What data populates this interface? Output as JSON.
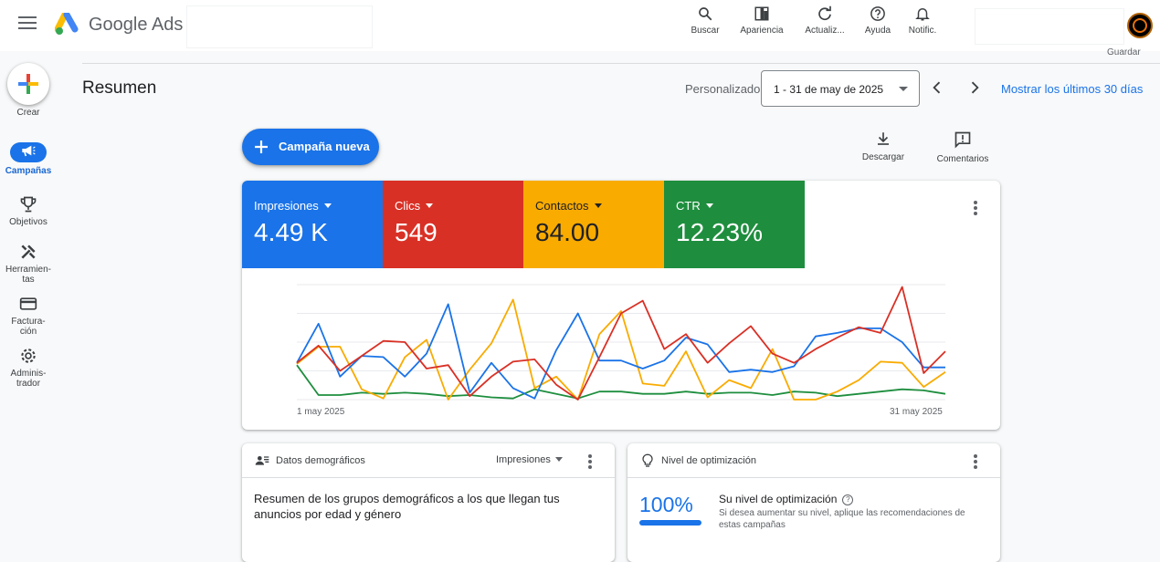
{
  "header": {
    "brand_google": "Google",
    "brand_ads": "Ads",
    "tools": [
      {
        "label": "Buscar",
        "icon": "search-icon"
      },
      {
        "label": "Apariencia",
        "icon": "appearance-icon"
      },
      {
        "label": "Actualiz...",
        "icon": "refresh-icon"
      },
      {
        "label": "Ayuda",
        "icon": "help-icon"
      },
      {
        "label": "Notific.",
        "icon": "bell-icon"
      }
    ],
    "guardar": "Guardar"
  },
  "rail": {
    "create": "Crear",
    "items": [
      {
        "label": "Campañas",
        "icon": "megaphone-icon",
        "active": true
      },
      {
        "label": "Objetivos",
        "icon": "trophy-icon"
      },
      {
        "label": "Herramien-tas",
        "line1": "Herramien-",
        "line2": "tas",
        "icon": "tools-icon"
      },
      {
        "label": "Factura-ción",
        "line1": "Factura-",
        "line2": "ción",
        "icon": "credit-card-icon"
      },
      {
        "label": "Adminis-trador",
        "line1": "Adminis-",
        "line2": "trador",
        "icon": "gear-icon"
      }
    ]
  },
  "toolbar": {
    "page_title": "Resumen",
    "range_label": "Personalizado",
    "date_range": "1 - 31 de may de 2025",
    "show_last": "Mostrar los últimos 30 días",
    "new_campaign": "Campaña nueva",
    "download": "Descargar",
    "comments": "Comentarios"
  },
  "metrics": [
    {
      "label": "Impresiones",
      "value": "4.49 K",
      "color": "#1a73e8"
    },
    {
      "label": "Clics",
      "value": "549",
      "color": "#d93025"
    },
    {
      "label": "Contactos",
      "value": "84.00",
      "color": "#f9ab00"
    },
    {
      "label": "CTR",
      "value": "12.23%",
      "color": "#1e8e3e"
    }
  ],
  "chart_data": {
    "type": "line",
    "x_start_label": "1 may 2025",
    "x_end_label": "31 may 2025",
    "x": [
      1,
      2,
      3,
      4,
      5,
      6,
      7,
      8,
      9,
      10,
      11,
      12,
      13,
      14,
      15,
      16,
      17,
      18,
      19,
      20,
      21,
      22,
      23,
      24,
      25,
      26,
      27,
      28,
      29,
      30,
      31
    ],
    "ylim": [
      0,
      100
    ],
    "series": [
      {
        "color": "#1a73e8",
        "values": [
          32,
          66,
          20,
          38,
          37,
          20,
          40,
          83,
          6,
          32,
          10,
          1,
          43,
          75,
          34,
          34,
          27,
          34,
          54,
          48,
          24,
          26,
          24,
          29,
          55,
          58,
          62,
          62,
          50,
          28,
          28
        ]
      },
      {
        "color": "#d93025",
        "values": [
          32,
          47,
          25,
          38,
          51,
          50,
          27,
          30,
          3,
          20,
          33,
          35,
          13,
          0,
          37,
          75,
          86,
          44,
          57,
          32,
          49,
          64,
          40,
          32,
          44,
          54,
          63,
          58,
          98,
          23,
          42
        ]
      },
      {
        "color": "#f9ab00",
        "values": [
          31,
          46,
          46,
          9,
          1,
          37,
          52,
          0,
          26,
          49,
          87,
          10,
          20,
          0,
          57,
          77,
          14,
          12,
          42,
          2,
          17,
          10,
          44,
          0,
          0,
          7,
          17,
          33,
          32,
          11,
          24
        ]
      },
      {
        "color": "#1e8e3e",
        "values": [
          30,
          4,
          4,
          6,
          5,
          6,
          5,
          3,
          4,
          2,
          1,
          9,
          5,
          1,
          7,
          7,
          5,
          5,
          7,
          5,
          6,
          6,
          4,
          7,
          6,
          3,
          5,
          7,
          9,
          8,
          5
        ]
      }
    ]
  },
  "demographics": {
    "title": "Datos demográficos",
    "dropdown": "Impresiones",
    "body": "Resumen de los grupos demográficos a los que llegan tus anuncios por edad y género"
  },
  "optimization": {
    "title": "Nivel de optimización",
    "score": "100%",
    "score_value": 100,
    "headline": "Su nivel de optimización",
    "desc": "Si desea aumentar su nivel, aplique las recomendaciones de estas campañas"
  }
}
